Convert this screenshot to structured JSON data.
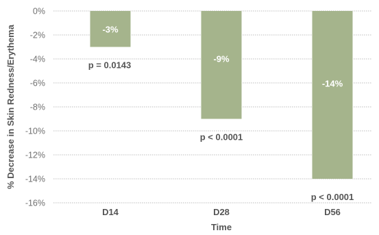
{
  "chart_data": {
    "type": "bar",
    "title": "",
    "xlabel": "Time",
    "ylabel": "% Decrease in Skin Redness/Erythema",
    "categories": [
      "D14",
      "D28",
      "D56"
    ],
    "values": [
      -3,
      -9,
      -14
    ],
    "value_labels": [
      "-3%",
      "-9%",
      "-14%"
    ],
    "annotations": [
      "p = 0.0143",
      "p < 0.0001",
      "p < 0.0001"
    ],
    "ylim": [
      -16,
      0
    ],
    "yticks": [
      0,
      -2,
      -4,
      -6,
      -8,
      -10,
      -12,
      -14,
      -16
    ],
    "ytick_labels": [
      "0%",
      "-2%",
      "-4%",
      "-6%",
      "-8%",
      "-10%",
      "-12%",
      "-14%",
      "-16%"
    ],
    "grid": true,
    "legend": "none",
    "colors": {
      "bar": "#a5b48c",
      "grid": "#bdbdbd",
      "text": "#555555"
    }
  }
}
